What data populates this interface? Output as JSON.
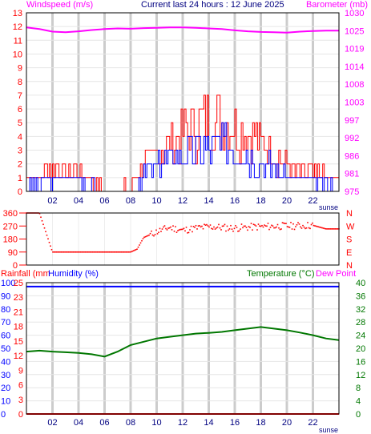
{
  "header": {
    "windspeed_label": "Windspeed (m/s)",
    "title": "Current last 24 hours : 12 June 2025",
    "barometer_label": "Barometer (mb)"
  },
  "colors": {
    "wind_avg": "#0000ff",
    "wind_gust": "#ff0000",
    "barometer": "#ff00ff",
    "direction": "#ff0000",
    "rainfall": "#ff0000",
    "humidity": "#0000ff",
    "temperature": "#007700",
    "dewpoint": "#ff00ff",
    "grid": "#cccccc",
    "daylight_band": "#dddddd"
  },
  "x_axis": {
    "ticks": [
      "02",
      "04",
      "06",
      "08",
      "10",
      "12",
      "14",
      "16",
      "18",
      "20",
      "22"
    ],
    "sunset_label": "sunse"
  },
  "chart_data": [
    {
      "type": "line",
      "name_hint": "wind",
      "title": "Windspeed (m/s)",
      "ylabel_left": "Windspeed (m/s)",
      "ylabel_right": "Barometer (mb)",
      "ylim": [
        0,
        13
      ],
      "yticks_left": [
        "0",
        "1",
        "2",
        "3",
        "4",
        "5",
        "6",
        "7",
        "8",
        "9",
        "10",
        "11",
        "12",
        "13"
      ],
      "yticks_right": [
        "975",
        "981",
        "986",
        "992",
        "997",
        "1003",
        "1008",
        "1014",
        "1019",
        "1025",
        "1030"
      ],
      "hours": [
        0,
        1,
        2,
        3,
        4,
        5,
        6,
        7,
        8,
        9,
        10,
        11,
        12,
        13,
        14,
        15,
        16,
        17,
        18,
        19,
        20,
        21,
        22,
        23,
        24
      ],
      "series": [
        {
          "name": "Windspeed",
          "values": [
            0.4,
            0.5,
            1.0,
            1.0,
            0.8,
            0.3,
            0.1,
            0.1,
            0.2,
            1.2,
            1.8,
            2.3,
            2.9,
            3.0,
            3.3,
            3.4,
            3.1,
            2.7,
            2.2,
            1.6,
            1.1,
            0.6,
            0.8,
            0.5,
            0.2
          ]
        },
        {
          "name": "Gust",
          "values": [
            0.8,
            1.0,
            1.8,
            1.6,
            1.4,
            0.6,
            0.3,
            0.3,
            0.5,
            2.0,
            2.8,
            3.6,
            4.4,
            4.7,
            5.0,
            5.2,
            4.8,
            4.3,
            3.5,
            2.8,
            2.0,
            1.2,
            1.3,
            1.0,
            0.4
          ]
        },
        {
          "name": "Barometer",
          "values": [
            1025.5,
            1025.0,
            1024.2,
            1024.0,
            1024.3,
            1024.7,
            1025.0,
            1025.2,
            1025.1,
            1025.3,
            1025.4,
            1025.5,
            1025.5,
            1025.4,
            1025.2,
            1025.0,
            1024.6,
            1024.3,
            1024.1,
            1024.0,
            1023.9,
            1024.2,
            1024.4,
            1024.5,
            1024.5
          ]
        }
      ]
    },
    {
      "type": "scatter",
      "title": "Wind direction",
      "ylim": [
        0,
        360
      ],
      "yticks_left": [
        "0",
        "90",
        "180",
        "270",
        "360"
      ],
      "yticks_right": [
        "N",
        "E",
        "S",
        "W",
        "N"
      ],
      "hours": [
        0,
        1,
        2,
        3,
        4,
        5,
        6,
        7,
        8,
        8.5,
        9,
        10,
        11,
        12,
        13,
        14,
        15,
        16,
        17,
        18,
        19,
        20,
        21,
        22,
        23,
        24
      ],
      "values": [
        360,
        360,
        90,
        90,
        90,
        90,
        90,
        90,
        90,
        110,
        190,
        230,
        260,
        240,
        255,
        265,
        260,
        255,
        262,
        265,
        268,
        270,
        272,
        275,
        250,
        250
      ]
    },
    {
      "type": "line",
      "title": "Temperature (°C)",
      "ylabel_left": "Rainfall (mm",
      "ylabel_left2": "Humidity (%)",
      "ylabel_right": "Temperature (°C)",
      "ylabel_right2": "Dew Point",
      "yticks_humidity": [
        "0",
        "10",
        "20",
        "30",
        "40",
        "50",
        "60",
        "70",
        "80",
        "90",
        "100"
      ],
      "yticks_rain": [
        "0",
        "3",
        "6",
        "9",
        "12",
        "15",
        "18",
        "21",
        "23",
        "25"
      ],
      "yticks_temp": [
        "0",
        "4",
        "8",
        "12",
        "16",
        "20",
        "24",
        "28",
        "32",
        "36",
        "40"
      ],
      "ylim_temp": [
        0,
        40
      ],
      "hours": [
        0,
        1,
        2,
        3,
        4,
        5,
        6,
        7,
        8,
        9,
        10,
        11,
        12,
        13,
        14,
        15,
        16,
        17,
        18,
        19,
        20,
        21,
        22,
        23,
        24
      ],
      "series": [
        {
          "name": "Humidity",
          "values": [
            97,
            97,
            97,
            97,
            97,
            97,
            97,
            97,
            97,
            97,
            97,
            97,
            97,
            97,
            97,
            97,
            97,
            97,
            97,
            97,
            97,
            97,
            97,
            97,
            97
          ]
        },
        {
          "name": "Rainfall",
          "values": [
            0,
            0,
            0,
            0,
            0,
            0,
            0,
            0,
            0,
            0,
            0,
            0,
            0,
            0,
            0,
            0,
            0,
            0,
            0,
            0,
            0,
            0,
            0,
            0,
            0
          ]
        },
        {
          "name": "Temperature",
          "values": [
            19.0,
            19.3,
            19.0,
            18.8,
            18.6,
            18.2,
            17.5,
            19.0,
            21.0,
            22.0,
            23.0,
            23.5,
            24.0,
            24.5,
            24.7,
            25.0,
            25.5,
            26.0,
            26.5,
            26.0,
            25.5,
            24.8,
            24.0,
            23.0,
            22.5
          ]
        }
      ]
    }
  ]
}
